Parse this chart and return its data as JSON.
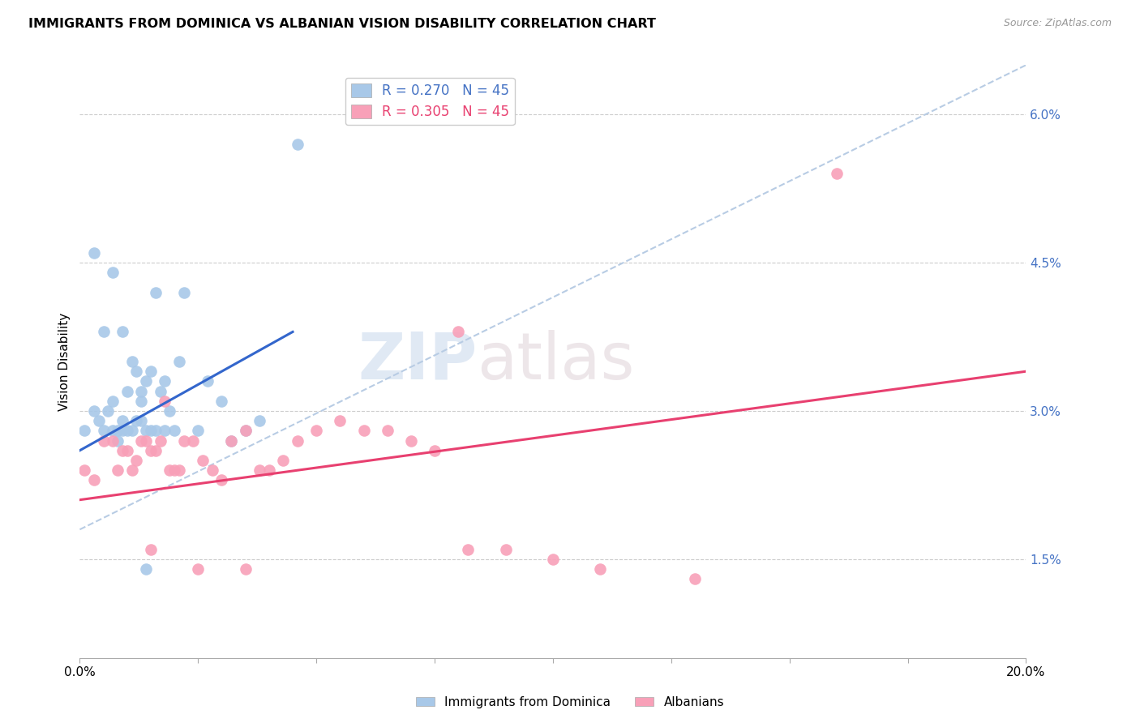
{
  "title": "IMMIGRANTS FROM DOMINICA VS ALBANIAN VISION DISABILITY CORRELATION CHART",
  "source": "Source: ZipAtlas.com",
  "xlabel": "",
  "ylabel": "Vision Disability",
  "xlim": [
    0.0,
    0.2
  ],
  "ylim": [
    0.005,
    0.065
  ],
  "yticks": [
    0.015,
    0.03,
    0.045,
    0.06
  ],
  "ytick_labels": [
    "1.5%",
    "3.0%",
    "4.5%",
    "6.0%"
  ],
  "xticks": [
    0.0,
    0.025,
    0.05,
    0.075,
    0.1,
    0.125,
    0.15,
    0.175,
    0.2
  ],
  "xtick_labels_show": [
    "0.0%",
    "",
    "",
    "",
    "",
    "",
    "",
    "",
    "20.0%"
  ],
  "R_blue": 0.27,
  "N_blue": 45,
  "R_pink": 0.305,
  "N_pink": 45,
  "blue_color": "#a8c8e8",
  "pink_color": "#f8a0b8",
  "blue_line_color": "#3366cc",
  "pink_line_color": "#e84070",
  "dashed_line_color": "#b8cce4",
  "watermark_zip": "ZIP",
  "watermark_atlas": "atlas",
  "blue_x": [
    0.001,
    0.003,
    0.004,
    0.005,
    0.005,
    0.006,
    0.007,
    0.007,
    0.008,
    0.008,
    0.009,
    0.009,
    0.009,
    0.01,
    0.01,
    0.011,
    0.011,
    0.012,
    0.012,
    0.013,
    0.013,
    0.013,
    0.014,
    0.014,
    0.015,
    0.015,
    0.016,
    0.016,
    0.017,
    0.018,
    0.018,
    0.019,
    0.02,
    0.021,
    0.022,
    0.025,
    0.027,
    0.03,
    0.032,
    0.035,
    0.038,
    0.003,
    0.007,
    0.014,
    0.046
  ],
  "blue_y": [
    0.028,
    0.03,
    0.029,
    0.038,
    0.028,
    0.03,
    0.031,
    0.028,
    0.028,
    0.027,
    0.028,
    0.029,
    0.038,
    0.028,
    0.032,
    0.028,
    0.035,
    0.029,
    0.034,
    0.031,
    0.032,
    0.029,
    0.033,
    0.028,
    0.028,
    0.034,
    0.028,
    0.042,
    0.032,
    0.033,
    0.028,
    0.03,
    0.028,
    0.035,
    0.042,
    0.028,
    0.033,
    0.031,
    0.027,
    0.028,
    0.029,
    0.046,
    0.044,
    0.014,
    0.057
  ],
  "pink_x": [
    0.001,
    0.003,
    0.005,
    0.007,
    0.008,
    0.009,
    0.01,
    0.011,
    0.012,
    0.013,
    0.014,
    0.015,
    0.016,
    0.017,
    0.018,
    0.019,
    0.02,
    0.021,
    0.022,
    0.024,
    0.026,
    0.028,
    0.03,
    0.032,
    0.035,
    0.038,
    0.04,
    0.043,
    0.046,
    0.05,
    0.055,
    0.06,
    0.065,
    0.07,
    0.075,
    0.082,
    0.09,
    0.1,
    0.11,
    0.13,
    0.015,
    0.025,
    0.035,
    0.16,
    0.08
  ],
  "pink_y": [
    0.024,
    0.023,
    0.027,
    0.027,
    0.024,
    0.026,
    0.026,
    0.024,
    0.025,
    0.027,
    0.027,
    0.026,
    0.026,
    0.027,
    0.031,
    0.024,
    0.024,
    0.024,
    0.027,
    0.027,
    0.025,
    0.024,
    0.023,
    0.027,
    0.028,
    0.024,
    0.024,
    0.025,
    0.027,
    0.028,
    0.029,
    0.028,
    0.028,
    0.027,
    0.026,
    0.016,
    0.016,
    0.015,
    0.014,
    0.013,
    0.016,
    0.014,
    0.014,
    0.054,
    0.038
  ],
  "blue_line_x": [
    0.0,
    0.045
  ],
  "blue_line_y": [
    0.026,
    0.038
  ],
  "pink_line_x": [
    0.0,
    0.2
  ],
  "pink_line_y": [
    0.021,
    0.034
  ],
  "dash_line_x": [
    0.0,
    0.2
  ],
  "dash_line_y": [
    0.018,
    0.065
  ]
}
